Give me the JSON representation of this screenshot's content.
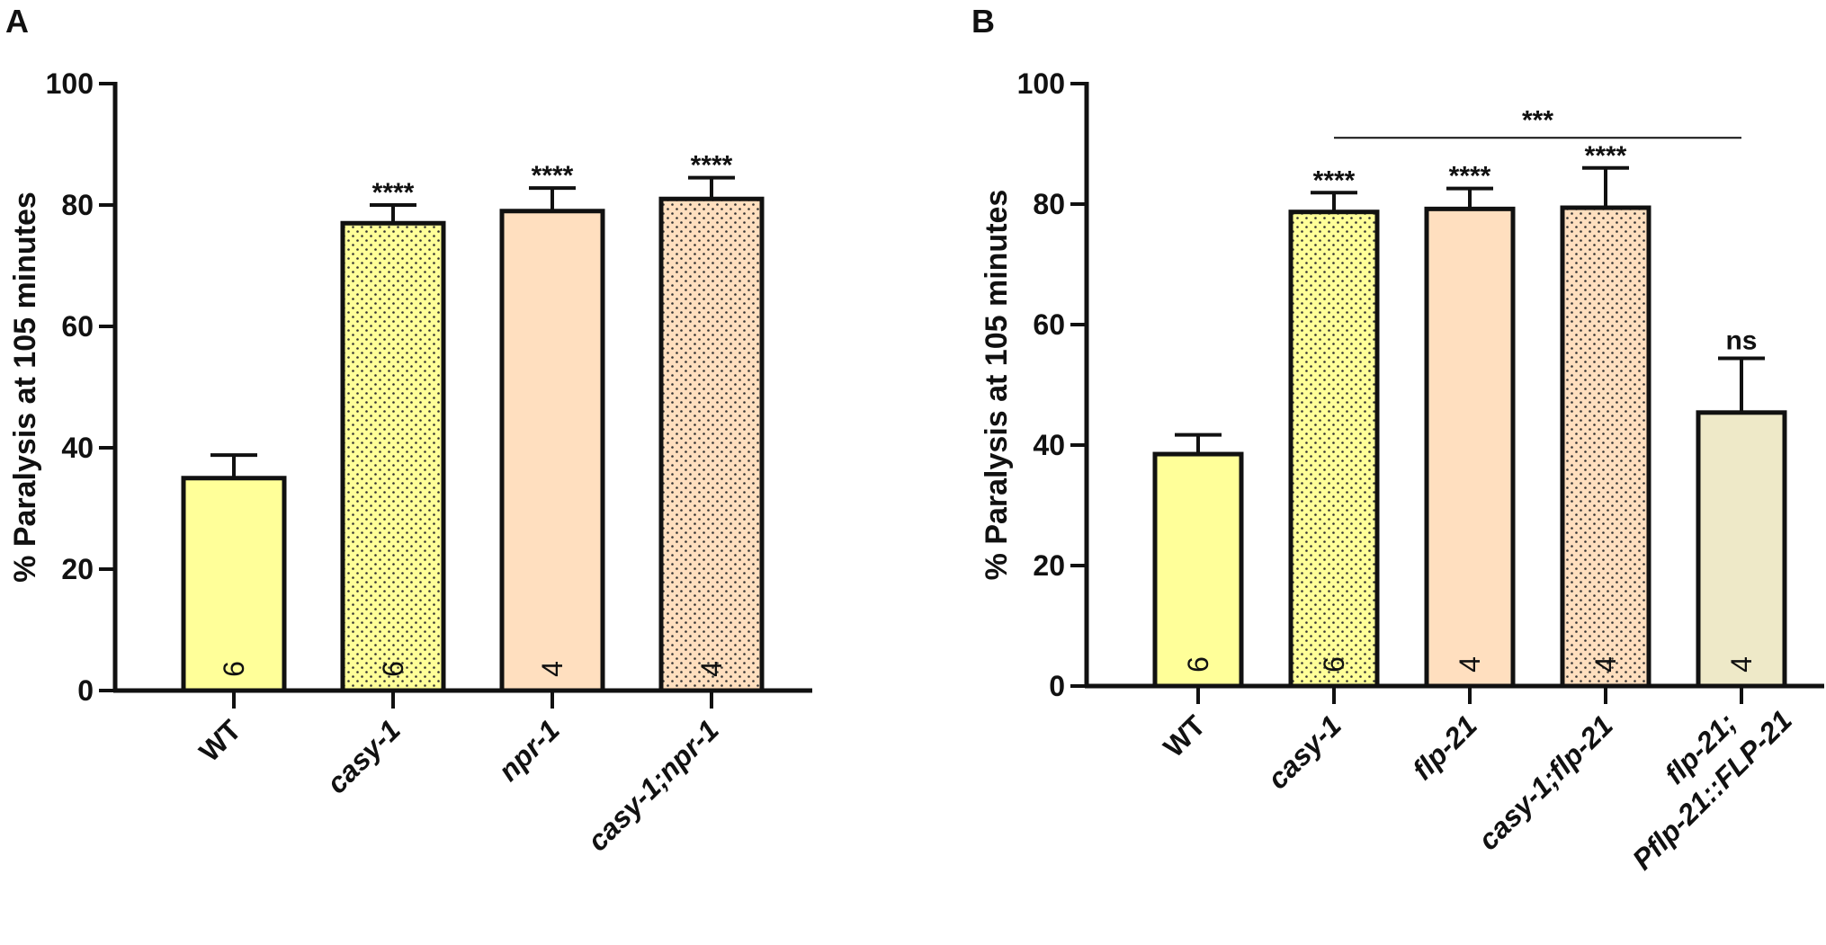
{
  "chart_data": [
    {
      "type": "bar",
      "panel": "A",
      "ylabel": "% Paralysis at 105 minutes",
      "ylim": [
        0,
        100
      ],
      "yticks": [
        "0",
        "20",
        "40",
        "60",
        "80",
        "100"
      ],
      "categories": [
        [
          "WT"
        ],
        [
          "casy-1"
        ],
        [
          "npr-1"
        ],
        [
          "casy-1;npr-1"
        ]
      ],
      "category_italic": [
        false,
        true,
        true,
        true
      ],
      "values": [
        35,
        77,
        79,
        81
      ],
      "errors": [
        3.8,
        3,
        3.8,
        3.5
      ],
      "n": [
        "6",
        "6",
        "4",
        "4"
      ],
      "significance": [
        "",
        "****",
        "****",
        "****"
      ],
      "colors": [
        "#ffff99",
        "#ffff99",
        "#ffdfbf",
        "#ffdfbf"
      ],
      "patterned": [
        false,
        true,
        false,
        true
      ],
      "comparison_lines": []
    },
    {
      "type": "bar",
      "panel": "B",
      "ylabel": "% Paralysis at 105 minutes",
      "ylim": [
        0,
        100
      ],
      "yticks": [
        "0",
        "20",
        "40",
        "60",
        "80",
        "100"
      ],
      "categories": [
        [
          "WT"
        ],
        [
          "casy-1"
        ],
        [
          "flp-21"
        ],
        [
          "casy-1;flp-21"
        ],
        [
          "flp-21;",
          "Pflp-21::FLP-21"
        ]
      ],
      "category_italic": [
        false,
        true,
        true,
        true,
        true
      ],
      "values": [
        38.5,
        78.7,
        79.2,
        79.4,
        45.4
      ],
      "errors": [
        3.2,
        3.2,
        3.4,
        6.6,
        9
      ],
      "n": [
        "6",
        "6",
        "4",
        "4",
        "4"
      ],
      "significance": [
        "",
        "****",
        "****",
        "****",
        "ns"
      ],
      "colors": [
        "#ffff99",
        "#ffff99",
        "#ffdfbf",
        "#ffdfbf",
        "#eee9c8"
      ],
      "patterned": [
        false,
        true,
        false,
        true,
        false
      ],
      "comparison_lines": [
        {
          "from": 1,
          "to": 4,
          "at": 91,
          "label": "***"
        }
      ]
    }
  ]
}
